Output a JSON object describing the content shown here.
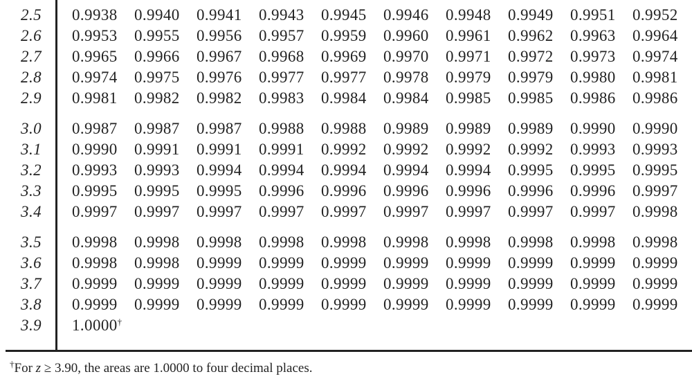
{
  "table": {
    "rows": [
      {
        "z": "2.5",
        "values": [
          "0.9938",
          "0.9940",
          "0.9941",
          "0.9943",
          "0.9945",
          "0.9946",
          "0.9948",
          "0.9949",
          "0.9951",
          "0.9952"
        ]
      },
      {
        "z": "2.6",
        "values": [
          "0.9953",
          "0.9955",
          "0.9956",
          "0.9957",
          "0.9959",
          "0.9960",
          "0.9961",
          "0.9962",
          "0.9963",
          "0.9964"
        ]
      },
      {
        "z": "2.7",
        "values": [
          "0.9965",
          "0.9966",
          "0.9967",
          "0.9968",
          "0.9969",
          "0.9970",
          "0.9971",
          "0.9972",
          "0.9973",
          "0.9974"
        ]
      },
      {
        "z": "2.8",
        "values": [
          "0.9974",
          "0.9975",
          "0.9976",
          "0.9977",
          "0.9977",
          "0.9978",
          "0.9979",
          "0.9979",
          "0.9980",
          "0.9981"
        ]
      },
      {
        "z": "2.9",
        "values": [
          "0.9981",
          "0.9982",
          "0.9982",
          "0.9983",
          "0.9984",
          "0.9984",
          "0.9985",
          "0.9985",
          "0.9986",
          "0.9986"
        ]
      },
      {
        "z": "3.0",
        "values": [
          "0.9987",
          "0.9987",
          "0.9987",
          "0.9988",
          "0.9988",
          "0.9989",
          "0.9989",
          "0.9989",
          "0.9990",
          "0.9990"
        ]
      },
      {
        "z": "3.1",
        "values": [
          "0.9990",
          "0.9991",
          "0.9991",
          "0.9991",
          "0.9992",
          "0.9992",
          "0.9992",
          "0.9992",
          "0.9993",
          "0.9993"
        ]
      },
      {
        "z": "3.2",
        "values": [
          "0.9993",
          "0.9993",
          "0.9994",
          "0.9994",
          "0.9994",
          "0.9994",
          "0.9994",
          "0.9995",
          "0.9995",
          "0.9995"
        ]
      },
      {
        "z": "3.3",
        "values": [
          "0.9995",
          "0.9995",
          "0.9995",
          "0.9996",
          "0.9996",
          "0.9996",
          "0.9996",
          "0.9996",
          "0.9996",
          "0.9997"
        ]
      },
      {
        "z": "3.4",
        "values": [
          "0.9997",
          "0.9997",
          "0.9997",
          "0.9997",
          "0.9997",
          "0.9997",
          "0.9997",
          "0.9997",
          "0.9997",
          "0.9998"
        ]
      },
      {
        "z": "3.5",
        "values": [
          "0.9998",
          "0.9998",
          "0.9998",
          "0.9998",
          "0.9998",
          "0.9998",
          "0.9998",
          "0.9998",
          "0.9998",
          "0.9998"
        ]
      },
      {
        "z": "3.6",
        "values": [
          "0.9998",
          "0.9998",
          "0.9999",
          "0.9999",
          "0.9999",
          "0.9999",
          "0.9999",
          "0.9999",
          "0.9999",
          "0.9999"
        ]
      },
      {
        "z": "3.7",
        "values": [
          "0.9999",
          "0.9999",
          "0.9999",
          "0.9999",
          "0.9999",
          "0.9999",
          "0.9999",
          "0.9999",
          "0.9999",
          "0.9999"
        ]
      },
      {
        "z": "3.8",
        "values": [
          "0.9999",
          "0.9999",
          "0.9999",
          "0.9999",
          "0.9999",
          "0.9999",
          "0.9999",
          "0.9999",
          "0.9999",
          "0.9999"
        ]
      },
      {
        "z": "3.9",
        "values": [
          "1.0000"
        ],
        "marker": "†"
      }
    ]
  },
  "footnote": {
    "marker": "†",
    "before": "For ",
    "variable": "z",
    "after": " ≥ 3.90, the areas are 1.0000 to four decimal places."
  }
}
